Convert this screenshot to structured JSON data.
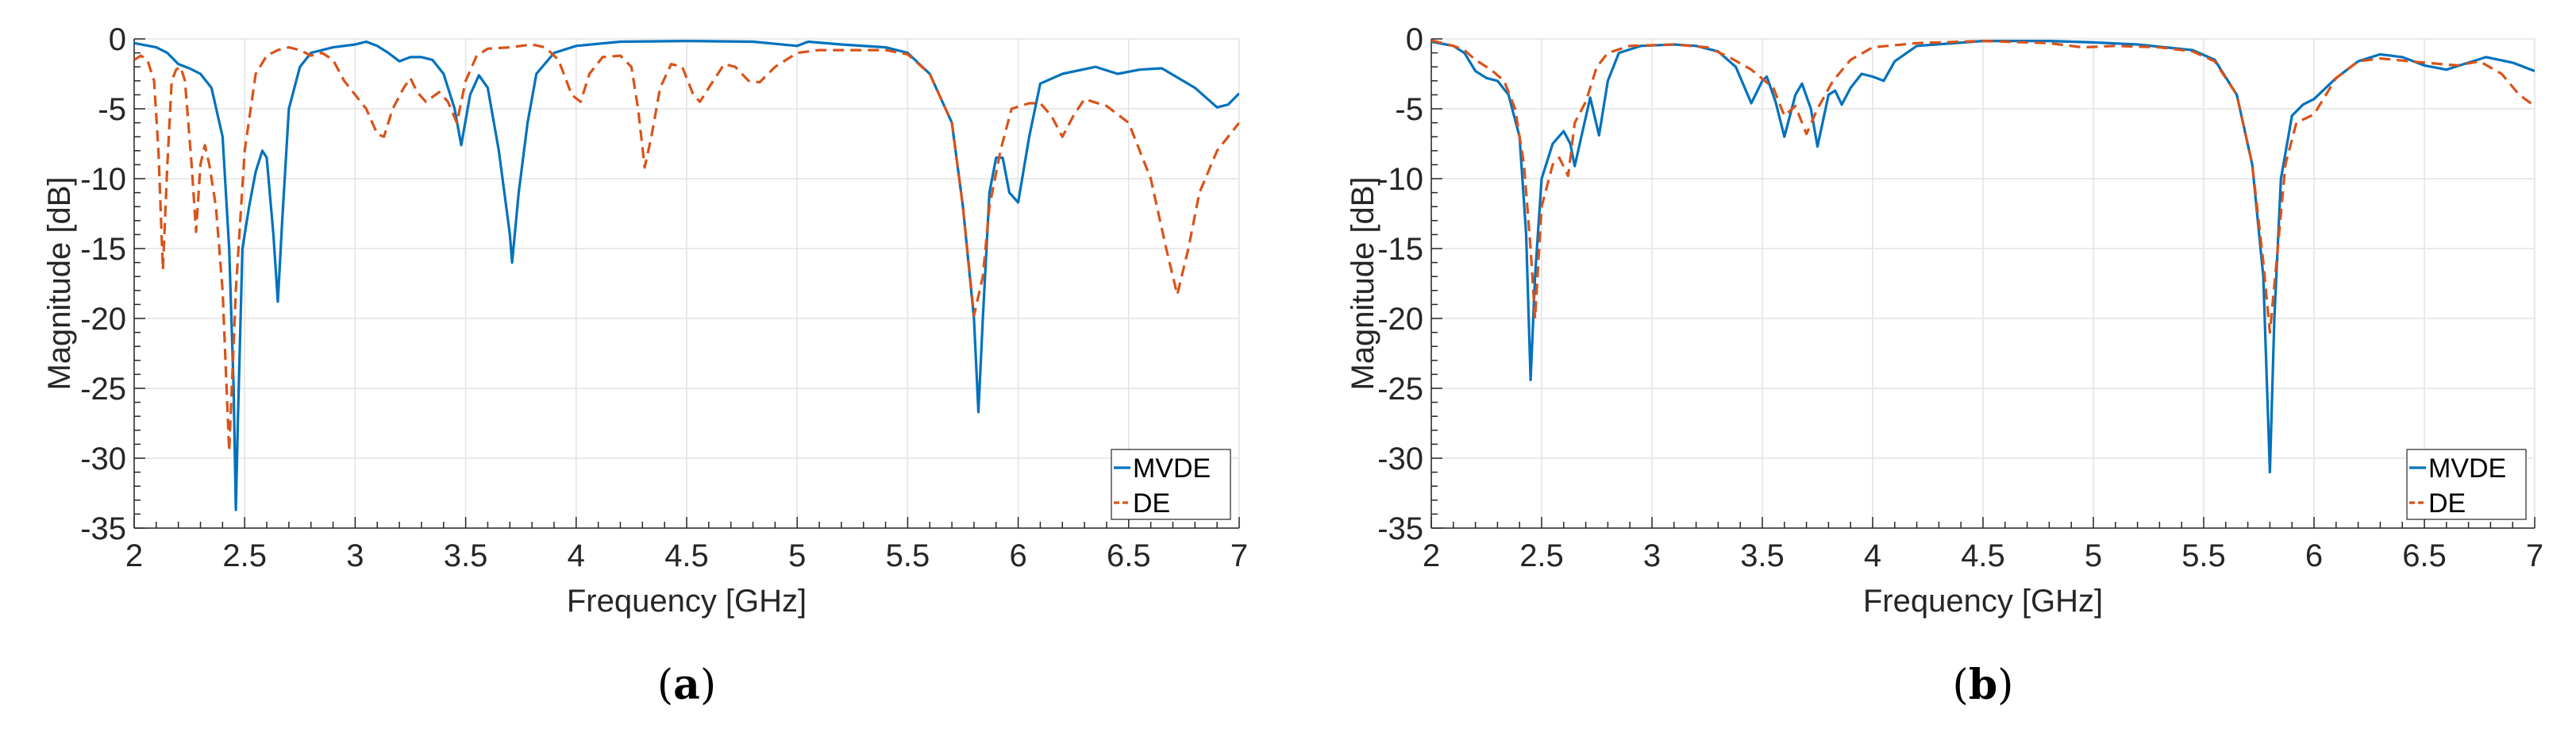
{
  "chart_data": [
    {
      "type": "line",
      "caption_open": "(",
      "caption_letter": "a",
      "caption_close": ")",
      "xlabel": "Frequency [GHz]",
      "ylabel": "Magnitude [dB]",
      "xlim": [
        2,
        7
      ],
      "ylim": [
        -35,
        0
      ],
      "xticks": [
        "2",
        "2.5",
        "3",
        "3.5",
        "4",
        "4.5",
        "5",
        "5.5",
        "6",
        "6.5",
        "7"
      ],
      "yticks": [
        "0",
        "-5",
        "-10",
        "-15",
        "-20",
        "-25",
        "-30",
        "-35"
      ],
      "grid": true,
      "legend_position": "bottom-right",
      "series": [
        {
          "name": "MVDE",
          "color": "#0072BD",
          "style": "solid",
          "x": [
            2.0,
            2.1,
            2.15,
            2.2,
            2.25,
            2.3,
            2.35,
            2.4,
            2.43,
            2.45,
            2.46,
            2.47,
            2.49,
            2.52,
            2.55,
            2.58,
            2.6,
            2.63,
            2.65,
            2.67,
            2.7,
            2.75,
            2.8,
            2.9,
            3.0,
            3.05,
            3.1,
            3.15,
            3.2,
            3.25,
            3.3,
            3.35,
            3.4,
            3.45,
            3.48,
            3.52,
            3.56,
            3.6,
            3.65,
            3.7,
            3.71,
            3.74,
            3.78,
            3.82,
            3.9,
            4.0,
            4.2,
            4.5,
            4.8,
            5.0,
            5.05,
            5.2,
            5.4,
            5.5,
            5.6,
            5.7,
            5.75,
            5.8,
            5.82,
            5.84,
            5.87,
            5.9,
            5.93,
            5.96,
            6.0,
            6.05,
            6.1,
            6.2,
            6.35,
            6.45,
            6.55,
            6.65,
            6.8,
            6.9,
            6.95,
            7.0
          ],
          "y": [
            -0.3,
            -0.6,
            -1.0,
            -1.8,
            -2.1,
            -2.5,
            -3.5,
            -7,
            -15,
            -25,
            -33.7,
            -27,
            -15,
            -12,
            -9.5,
            -8,
            -8.5,
            -14,
            -18.8,
            -13,
            -5,
            -2,
            -1.0,
            -0.6,
            -0.4,
            -0.2,
            -0.5,
            -1.0,
            -1.6,
            -1.3,
            -1.3,
            -1.5,
            -2.5,
            -5,
            -7.6,
            -4,
            -2.6,
            -3.5,
            -8,
            -14,
            -16,
            -11,
            -6,
            -2.5,
            -1.0,
            -0.5,
            -0.2,
            -0.15,
            -0.2,
            -0.5,
            -0.2,
            -0.4,
            -0.6,
            -1.0,
            -2.5,
            -6,
            -12,
            -20,
            -26.7,
            -20,
            -11,
            -8.5,
            -8.5,
            -11,
            -11.7,
            -7,
            -3.2,
            -2.5,
            -2.0,
            -2.5,
            -2.2,
            -2.1,
            -3.5,
            -4.9,
            -4.7,
            -3.9
          ]
        },
        {
          "name": "DE",
          "color": "#D95319",
          "style": "dashed",
          "x": [
            2.0,
            2.03,
            2.06,
            2.09,
            2.11,
            2.13,
            2.15,
            2.17,
            2.19,
            2.21,
            2.23,
            2.26,
            2.28,
            2.3,
            2.32,
            2.34,
            2.37,
            2.4,
            2.43,
            2.46,
            2.5,
            2.55,
            2.6,
            2.65,
            2.7,
            2.75,
            2.8,
            2.85,
            2.9,
            2.95,
            3.0,
            3.05,
            3.1,
            3.13,
            3.17,
            3.22,
            3.25,
            3.28,
            3.32,
            3.38,
            3.42,
            3.46,
            3.5,
            3.55,
            3.6,
            3.7,
            3.8,
            3.86,
            3.92,
            3.98,
            4.02,
            4.06,
            4.12,
            4.2,
            4.25,
            4.28,
            4.31,
            4.34,
            4.38,
            4.43,
            4.48,
            4.53,
            4.56,
            4.6,
            4.67,
            4.72,
            4.78,
            4.83,
            4.9,
            5.0,
            5.1,
            5.4,
            5.5,
            5.6,
            5.7,
            5.75,
            5.8,
            5.84,
            5.87,
            5.92,
            5.97,
            6.05,
            6.1,
            6.15,
            6.2,
            6.25,
            6.3,
            6.4,
            6.5,
            6.6,
            6.67,
            6.72,
            6.77,
            6.82,
            6.9,
            7.0
          ],
          "y": [
            -1.5,
            -1.2,
            -1.5,
            -3,
            -8,
            -16.5,
            -9,
            -3,
            -2.2,
            -2.0,
            -3,
            -9,
            -13.8,
            -9,
            -7.6,
            -9,
            -12,
            -18,
            -29.5,
            -18,
            -8,
            -2.5,
            -1.2,
            -0.8,
            -0.6,
            -0.8,
            -1.2,
            -1.0,
            -1.5,
            -3,
            -4,
            -5,
            -6.8,
            -7,
            -5,
            -3.5,
            -2.8,
            -3.8,
            -4.5,
            -3.8,
            -4.5,
            -6,
            -3,
            -1.2,
            -0.7,
            -0.6,
            -0.4,
            -0.6,
            -1.5,
            -4,
            -4.5,
            -2.5,
            -1.3,
            -1.2,
            -2,
            -5,
            -9.2,
            -7,
            -3.5,
            -1.8,
            -2.0,
            -4,
            -4.5,
            -3.5,
            -1.8,
            -2.0,
            -3,
            -3.1,
            -2,
            -1.0,
            -0.8,
            -0.8,
            -1.1,
            -2.5,
            -6,
            -12,
            -19.8,
            -17,
            -12,
            -8,
            -5,
            -4.6,
            -4.6,
            -5.5,
            -7,
            -5.5,
            -4.3,
            -4.8,
            -6,
            -10,
            -15,
            -18.3,
            -15,
            -11,
            -8,
            -6
          ]
        }
      ]
    },
    {
      "type": "line",
      "caption_open": "(",
      "caption_letter": "b",
      "caption_close": ")",
      "xlabel": "Frequency [GHz]",
      "ylabel": "Magnitude [dB]",
      "xlim": [
        2,
        7
      ],
      "ylim": [
        -35,
        0
      ],
      "xticks": [
        "2",
        "2.5",
        "3",
        "3.5",
        "4",
        "4.5",
        "5",
        "5.5",
        "6",
        "6.5",
        "7"
      ],
      "yticks": [
        "0",
        "-5",
        "-10",
        "-15",
        "-20",
        "-25",
        "-30",
        "-35"
      ],
      "grid": true,
      "legend_position": "bottom-right",
      "series": [
        {
          "name": "MVDE",
          "color": "#0072BD",
          "style": "solid",
          "x": [
            2.0,
            2.1,
            2.15,
            2.2,
            2.25,
            2.3,
            2.35,
            2.4,
            2.43,
            2.45,
            2.47,
            2.5,
            2.55,
            2.6,
            2.63,
            2.65,
            2.68,
            2.72,
            2.76,
            2.8,
            2.85,
            2.95,
            3.1,
            3.2,
            3.3,
            3.38,
            3.45,
            3.5,
            3.52,
            3.56,
            3.6,
            3.65,
            3.68,
            3.72,
            3.75,
            3.8,
            3.83,
            3.86,
            3.9,
            3.95,
            4.0,
            4.05,
            4.1,
            4.2,
            4.5,
            4.8,
            5.0,
            5.2,
            5.45,
            5.55,
            5.65,
            5.72,
            5.77,
            5.8,
            5.82,
            5.85,
            5.9,
            5.95,
            6.0,
            6.1,
            6.2,
            6.3,
            6.4,
            6.5,
            6.6,
            6.7,
            6.78,
            6.9,
            7.0
          ],
          "y": [
            -0.2,
            -0.5,
            -1.0,
            -2.3,
            -2.8,
            -3.0,
            -4,
            -7,
            -14,
            -24.4,
            -17,
            -10,
            -7.5,
            -6.6,
            -7.5,
            -9.1,
            -7,
            -4.2,
            -6.9,
            -3.0,
            -1.0,
            -0.5,
            -0.4,
            -0.5,
            -0.9,
            -2,
            -4.6,
            -3,
            -2.7,
            -4.5,
            -7,
            -4,
            -3.2,
            -5,
            -7.7,
            -4,
            -3.7,
            -4.7,
            -3.5,
            -2.5,
            -2.7,
            -3.0,
            -1.6,
            -0.5,
            -0.15,
            -0.15,
            -0.25,
            -0.4,
            -0.8,
            -1.5,
            -4,
            -9,
            -17,
            -31,
            -20,
            -10,
            -5.5,
            -4.7,
            -4.3,
            -2.8,
            -1.6,
            -1.1,
            -1.3,
            -1.9,
            -2.2,
            -1.7,
            -1.3,
            -1.7,
            -2.3
          ]
        },
        {
          "name": "DE",
          "color": "#D95319",
          "style": "dashed",
          "x": [
            2.0,
            2.1,
            2.15,
            2.2,
            2.27,
            2.33,
            2.38,
            2.42,
            2.45,
            2.47,
            2.5,
            2.55,
            2.58,
            2.62,
            2.65,
            2.7,
            2.75,
            2.8,
            2.9,
            3.1,
            3.25,
            3.35,
            3.45,
            3.55,
            3.6,
            3.65,
            3.7,
            3.75,
            3.82,
            3.9,
            4.0,
            4.2,
            4.5,
            4.8,
            4.95,
            5.1,
            5.3,
            5.45,
            5.55,
            5.65,
            5.72,
            5.77,
            5.8,
            5.83,
            5.87,
            5.92,
            6.0,
            6.1,
            6.2,
            6.3,
            6.5,
            6.65,
            6.75,
            6.85,
            6.93,
            7.0
          ],
          "y": [
            -0.1,
            -0.5,
            -0.8,
            -1.5,
            -2.2,
            -3,
            -5,
            -9,
            -15,
            -20,
            -12,
            -9,
            -8.5,
            -9.8,
            -6,
            -4.5,
            -2,
            -1.0,
            -0.5,
            -0.4,
            -0.6,
            -1.3,
            -2.2,
            -3.5,
            -5.5,
            -4.8,
            -6.8,
            -5,
            -3,
            -1.5,
            -0.6,
            -0.3,
            -0.15,
            -0.3,
            -0.6,
            -0.5,
            -0.6,
            -0.9,
            -1.6,
            -4,
            -9,
            -16,
            -21,
            -16,
            -9,
            -6,
            -5.4,
            -2.8,
            -1.6,
            -1.4,
            -1.7,
            -1.9,
            -1.6,
            -2.5,
            -4,
            -4.8
          ]
        }
      ]
    }
  ]
}
